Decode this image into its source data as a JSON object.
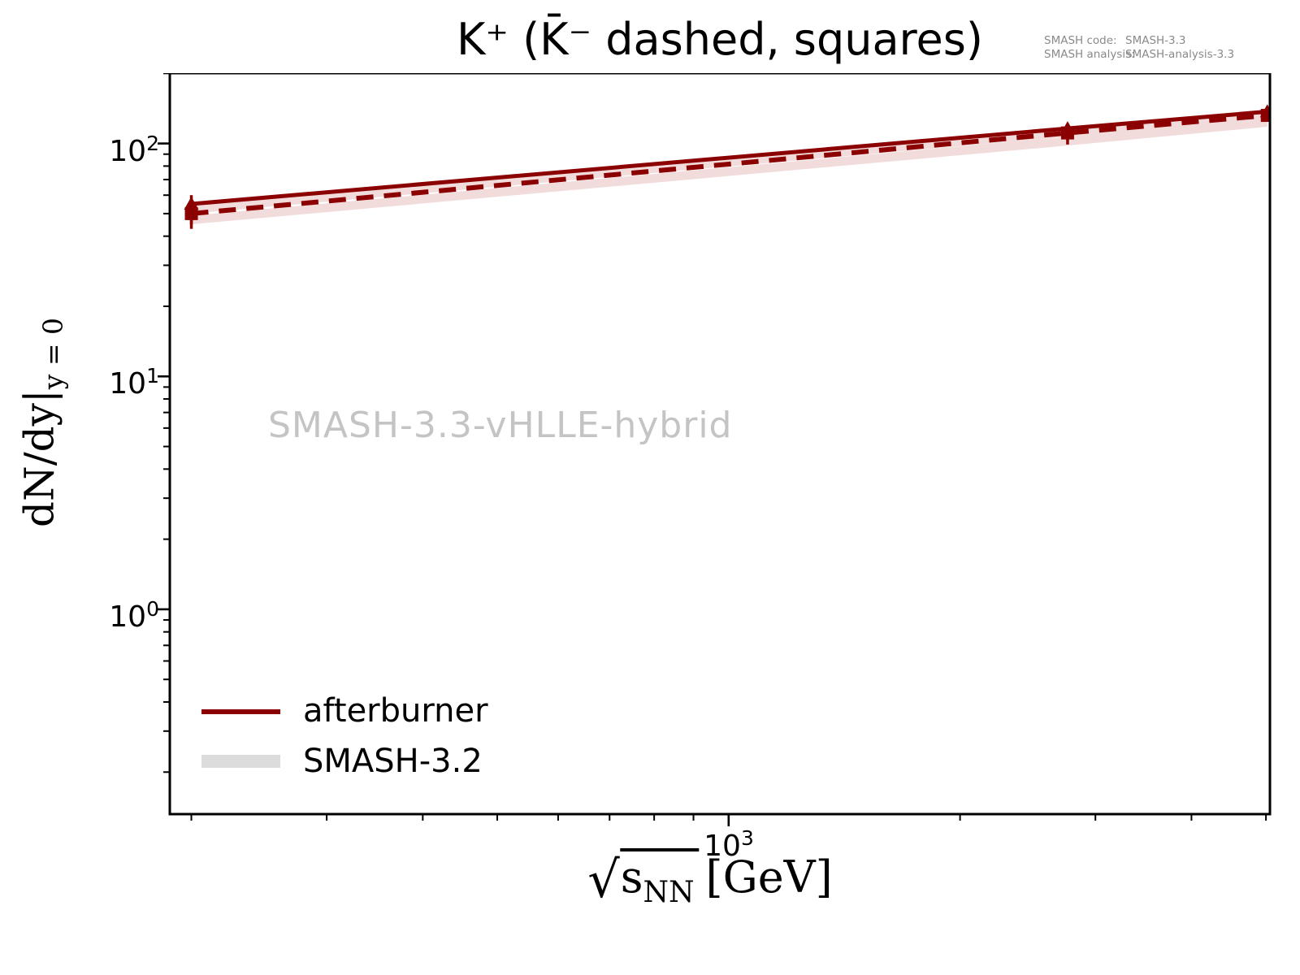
{
  "figure": {
    "title": "K⁺ (K̄⁻ dashed, squares)",
    "annotations": {
      "code_label": "SMASH code:",
      "code_value": "SMASH-3.3",
      "analysis_label": "SMASH analysis:",
      "analysis_value": "SMASH-analysis-3.3"
    },
    "watermark": "SMASH-3.3-vHLLE-hybrid",
    "ylabel": {
      "main": "dN/dy|",
      "sub": "y = 0"
    },
    "xlabel": {
      "radical": "√",
      "symbol": "s",
      "subscript": "NN",
      "unit": "[GeV]"
    },
    "yticks": [
      {
        "base": "10",
        "exp": "2"
      },
      {
        "base": "10",
        "exp": "1"
      },
      {
        "base": "10",
        "exp": "0"
      }
    ],
    "xticks": [
      {
        "base": "10",
        "exp": "3"
      }
    ],
    "legend": [
      {
        "label": "afterburner",
        "swatch_color": "#8B0000",
        "swatch_type": "line"
      },
      {
        "label": "SMASH-3.2",
        "swatch_color": "#DCDCDC",
        "swatch_type": "band"
      }
    ]
  },
  "chart_data": {
    "type": "line",
    "title": "K+ (anti-K- dashed, squares)",
    "xlabel": "sqrt(s_NN) [GeV]",
    "ylabel": "dN/dy at y=0",
    "xscale": "log",
    "yscale": "log",
    "xlim": [
      187.5,
      5060
    ],
    "ylim": [
      0.132,
      200.5
    ],
    "xticks_major": [
      1000
    ],
    "yticks_major": [
      1,
      10,
      100
    ],
    "grid": false,
    "legend_position": "lower-left",
    "x": [
      200,
      2760,
      5020
    ],
    "series": [
      {
        "name": "K+ afterburner",
        "line": "solid",
        "marker": "triangle",
        "color": "#8B0000",
        "values": [
          55,
          116,
          137
        ],
        "err_lo": [
          45,
          99,
          134
        ],
        "err_hi": [
          60,
          122,
          140
        ]
      },
      {
        "name": "anti-K- afterburner",
        "line": "dashed",
        "marker": "square",
        "color": "#8B0000",
        "values": [
          50,
          111,
          132
        ],
        "err_lo": [
          43,
          105,
          129
        ],
        "err_hi": [
          57,
          116,
          135
        ]
      }
    ],
    "bands": [
      {
        "name": "SMASH-3.2 K+",
        "color": "#F2DBDB",
        "lower": [
          50,
          107,
          128
        ],
        "upper": [
          54,
          114,
          136
        ]
      },
      {
        "name": "SMASH-3.2 anti-K-",
        "color": "#F2DBDB",
        "lower": [
          45,
          98,
          118
        ],
        "upper": [
          49,
          107,
          129
        ]
      }
    ]
  }
}
